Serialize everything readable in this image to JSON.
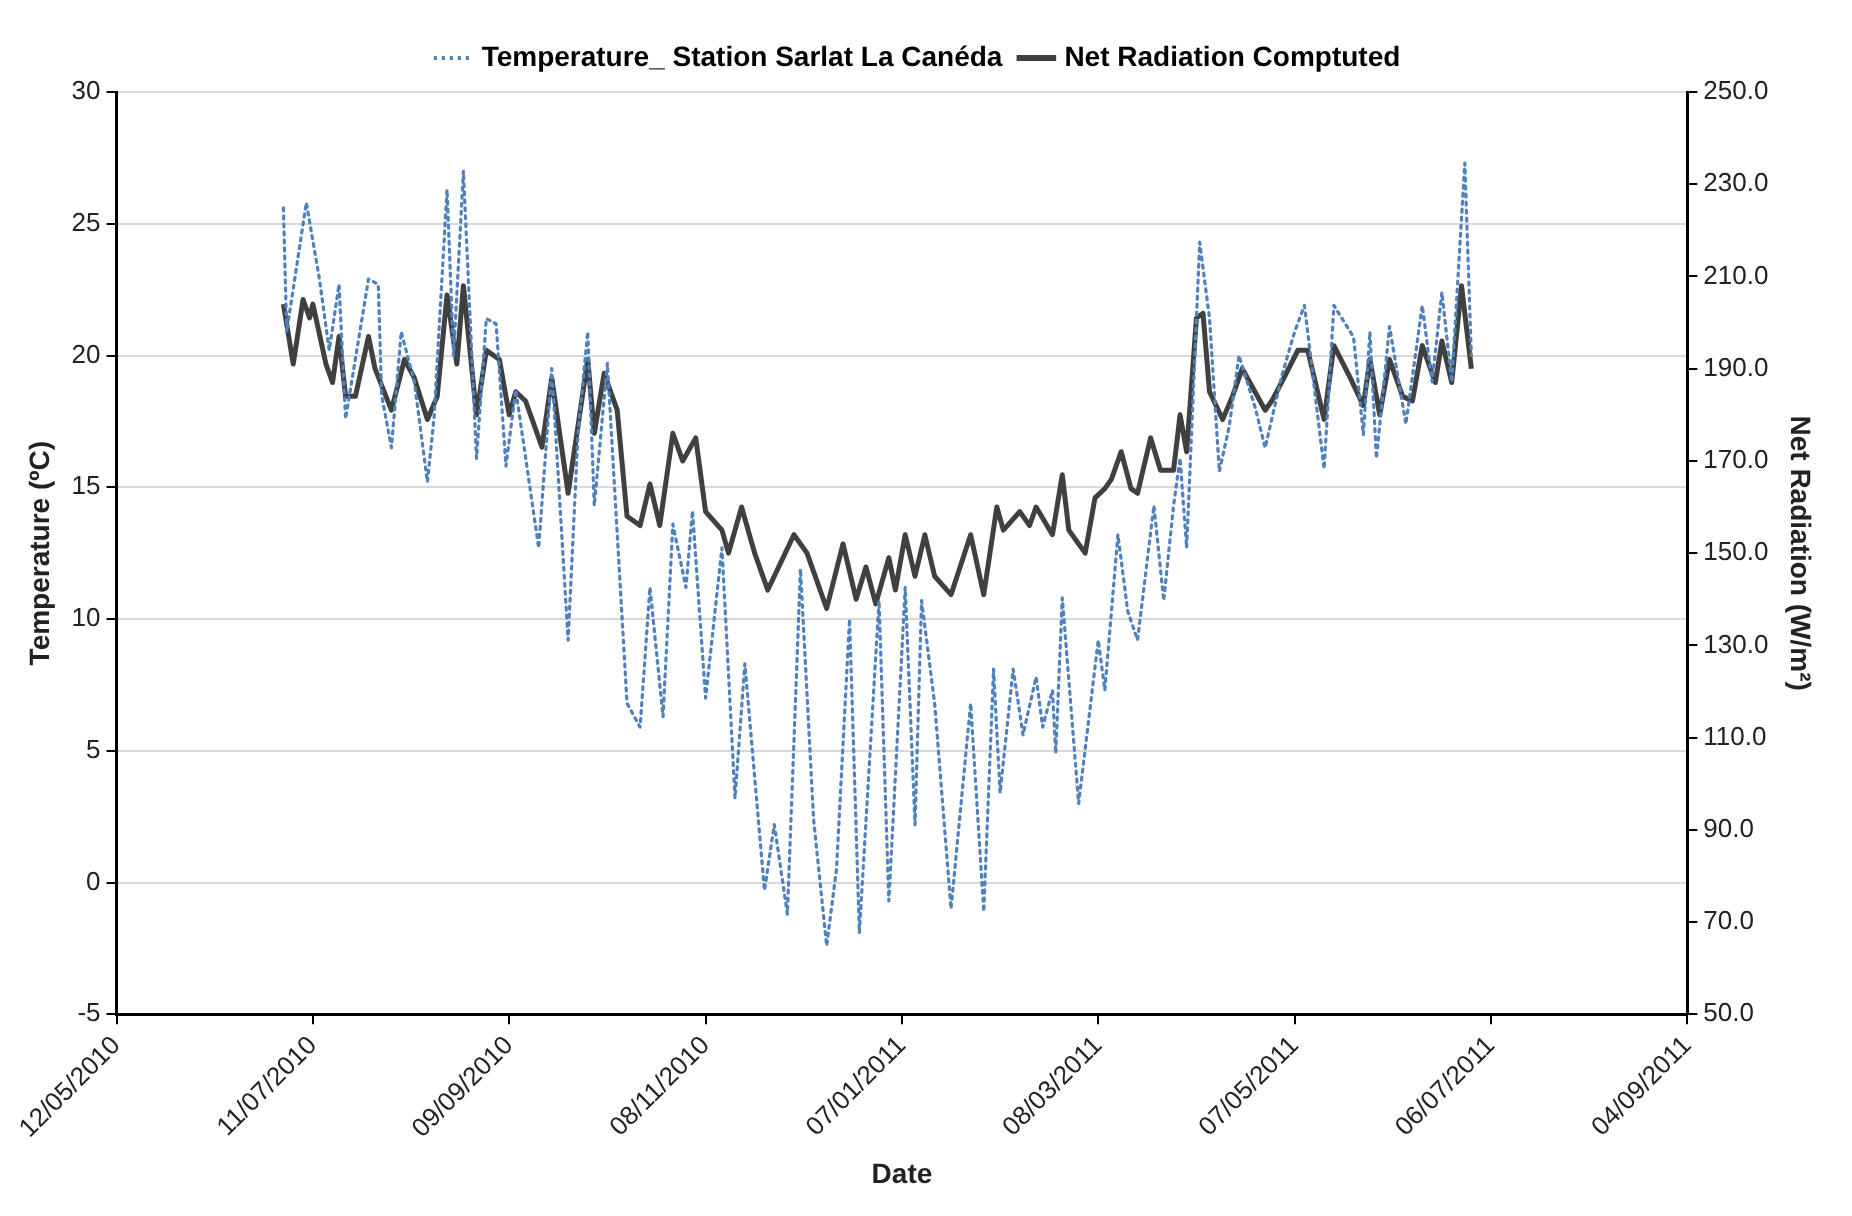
{
  "chart_data": {
    "type": "line",
    "xlabel": "Date",
    "ylabel": "Temperature (ºC)",
    "y2label": "Net Radiation (W/m²)",
    "xlim": [
      "2010-05-12",
      "2011-09-04"
    ],
    "xticks": [
      {
        "value": "2010-05-12",
        "label": "12/05/2010"
      },
      {
        "value": "2010-07-11",
        "label": "11/07/2010"
      },
      {
        "value": "2010-09-09",
        "label": "09/09/2010"
      },
      {
        "value": "2010-11-08",
        "label": "08/11/2010"
      },
      {
        "value": "2011-01-07",
        "label": "07/01/2011"
      },
      {
        "value": "2011-03-08",
        "label": "08/03/2011"
      },
      {
        "value": "2011-05-07",
        "label": "07/05/2011"
      },
      {
        "value": "2011-07-06",
        "label": "06/07/2011"
      },
      {
        "value": "2011-09-04",
        "label": "04/09/2011"
      }
    ],
    "ylim": [
      -5,
      30
    ],
    "yticks": [
      -5,
      0,
      5,
      10,
      15,
      20,
      25,
      30
    ],
    "y2lim": [
      50,
      250
    ],
    "y2ticks": [
      {
        "value": 50,
        "label": "50.0"
      },
      {
        "value": 70,
        "label": "70.0"
      },
      {
        "value": 90,
        "label": "90.0"
      },
      {
        "value": 110,
        "label": "110.0"
      },
      {
        "value": 130,
        "label": "130.0"
      },
      {
        "value": 150,
        "label": "150.0"
      },
      {
        "value": 170,
        "label": "170.0"
      },
      {
        "value": 190,
        "label": "190.0"
      },
      {
        "value": 210,
        "label": "210.0"
      },
      {
        "value": 230,
        "label": "230.0"
      },
      {
        "value": 250,
        "label": "250.0"
      }
    ],
    "grid": "y",
    "legend": "top",
    "marker": "none",
    "series": [
      {
        "name": "Temperature_ Station Sarlat La Canéda",
        "color": "#4f81bd",
        "line_style": "dotted",
        "x": [
          "2010-07-02",
          "2010-07-03",
          "2010-07-09",
          "2010-07-13",
          "2010-07-16",
          "2010-07-19",
          "2010-07-21",
          "2010-07-28",
          "2010-07-31",
          "2010-08-01",
          "2010-08-04",
          "2010-08-07",
          "2010-08-11",
          "2010-08-15",
          "2010-08-17",
          "2010-08-21",
          "2010-08-23",
          "2010-08-26",
          "2010-08-30",
          "2010-09-02",
          "2010-09-05",
          "2010-09-08",
          "2010-09-11",
          "2010-09-18",
          "2010-09-22",
          "2010-09-27",
          "2010-09-30",
          "2010-10-03",
          "2010-10-05",
          "2010-10-09",
          "2010-10-15",
          "2010-10-19",
          "2010-10-22",
          "2010-10-26",
          "2010-10-29",
          "2010-11-02",
          "2010-11-04",
          "2010-11-08",
          "2010-11-13",
          "2010-11-17",
          "2010-11-20",
          "2010-11-26",
          "2010-11-29",
          "2010-12-03",
          "2010-12-07",
          "2010-12-11",
          "2010-12-15",
          "2010-12-18",
          "2010-12-22",
          "2010-12-25",
          "2010-12-31",
          "2011-01-03",
          "2011-01-08",
          "2011-01-11",
          "2011-01-13",
          "2011-01-17",
          "2011-01-22",
          "2011-01-28",
          "2011-02-01",
          "2011-02-04",
          "2011-02-06",
          "2011-02-10",
          "2011-02-13",
          "2011-02-17",
          "2011-02-19",
          "2011-02-22",
          "2011-02-23",
          "2011-02-25",
          "2011-03-02",
          "2011-03-08",
          "2011-03-10",
          "2011-03-14",
          "2011-03-17",
          "2011-03-20",
          "2011-03-25",
          "2011-03-28",
          "2011-03-31",
          "2011-04-02",
          "2011-04-04",
          "2011-04-08",
          "2011-04-11",
          "2011-04-14",
          "2011-04-17",
          "2011-04-20",
          "2011-04-25",
          "2011-04-28",
          "2011-05-03",
          "2011-05-07",
          "2011-05-10",
          "2011-05-16",
          "2011-05-19",
          "2011-05-25",
          "2011-05-28",
          "2011-05-30",
          "2011-06-01",
          "2011-06-05",
          "2011-06-10",
          "2011-06-15",
          "2011-06-18",
          "2011-06-21",
          "2011-06-24",
          "2011-06-28",
          "2011-06-30"
        ],
        "values": [
          25.6,
          20.9,
          25.8,
          22.9,
          20.2,
          22.7,
          17.6,
          22.9,
          22.7,
          18.5,
          16.5,
          20.9,
          19.0,
          15.2,
          17.6,
          26.3,
          20.0,
          27.0,
          16.1,
          21.4,
          21.2,
          15.8,
          18.7,
          12.7,
          19.5,
          9.2,
          17.0,
          20.9,
          14.3,
          19.7,
          6.8,
          5.9,
          11.2,
          6.3,
          13.6,
          11.2,
          14.1,
          7.0,
          12.7,
          3.2,
          8.3,
          -0.3,
          2.2,
          -1.2,
          11.9,
          2.4,
          -2.4,
          0.5,
          10.0,
          -1.9,
          10.7,
          -0.7,
          11.2,
          2.2,
          10.7,
          6.8,
          -1.0,
          6.8,
          -1.1,
          8.1,
          3.4,
          8.1,
          5.6,
          7.8,
          5.9,
          7.3,
          4.9,
          10.8,
          3.0,
          9.2,
          7.3,
          13.2,
          10.3,
          9.2,
          14.3,
          10.7,
          14.3,
          16.1,
          12.7,
          24.3,
          21.4,
          15.6,
          17.3,
          20.0,
          18.0,
          16.5,
          19.2,
          20.9,
          21.9,
          15.7,
          21.9,
          20.7,
          17.0,
          20.9,
          16.1,
          21.1,
          17.4,
          21.9,
          19.0,
          22.4,
          19.0,
          27.3,
          20.0
        ]
      },
      {
        "name": "Net Radiation Comptuted",
        "color": "#404040",
        "line_style": "solid",
        "axis": "y2",
        "x": [
          "2010-07-02",
          "2010-07-05",
          "2010-07-08",
          "2010-07-10",
          "2010-07-11",
          "2010-07-15",
          "2010-07-17",
          "2010-07-19",
          "2010-07-21",
          "2010-07-24",
          "2010-07-28",
          "2010-07-30",
          "2010-08-04",
          "2010-08-08",
          "2010-08-11",
          "2010-08-15",
          "2010-08-18",
          "2010-08-21",
          "2010-08-24",
          "2010-08-26",
          "2010-08-30",
          "2010-09-02",
          "2010-09-06",
          "2010-09-09",
          "2010-09-11",
          "2010-09-14",
          "2010-09-19",
          "2010-09-22",
          "2010-09-27",
          "2010-10-03",
          "2010-10-05",
          "2010-10-08",
          "2010-10-12",
          "2010-10-15",
          "2010-10-19",
          "2010-10-22",
          "2010-10-25",
          "2010-10-29",
          "2010-11-01",
          "2010-11-05",
          "2010-11-08",
          "2010-11-13",
          "2010-11-15",
          "2010-11-19",
          "2010-11-23",
          "2010-11-27",
          "2010-12-01",
          "2010-12-05",
          "2010-12-09",
          "2010-12-15",
          "2010-12-20",
          "2010-12-24",
          "2010-12-27",
          "2010-12-30",
          "2011-01-03",
          "2011-01-05",
          "2011-01-08",
          "2011-01-11",
          "2011-01-14",
          "2011-01-17",
          "2011-01-22",
          "2011-01-28",
          "2011-02-01",
          "2011-02-05",
          "2011-02-07",
          "2011-02-12",
          "2011-02-15",
          "2011-02-17",
          "2011-02-22",
          "2011-02-25",
          "2011-02-27",
          "2011-03-04",
          "2011-03-07",
          "2011-03-10",
          "2011-03-12",
          "2011-03-15",
          "2011-03-18",
          "2011-03-20",
          "2011-03-24",
          "2011-03-27",
          "2011-03-31",
          "2011-04-02",
          "2011-04-04",
          "2011-04-07",
          "2011-04-09",
          "2011-04-11",
          "2011-04-15",
          "2011-04-18",
          "2011-04-21",
          "2011-04-28",
          "2011-04-30",
          "2011-05-03",
          "2011-05-08",
          "2011-05-11",
          "2011-05-16",
          "2011-05-19",
          "2011-05-24",
          "2011-05-28",
          "2011-05-30",
          "2011-06-02",
          "2011-06-05",
          "2011-06-09",
          "2011-06-12",
          "2011-06-15",
          "2011-06-19",
          "2011-06-21",
          "2011-06-24",
          "2011-06-27",
          "2011-06-30"
        ],
        "values": [
          204,
          191,
          205,
          201,
          204,
          191,
          187,
          197,
          184,
          184,
          197,
          190,
          181,
          192,
          188,
          179,
          184,
          206,
          191,
          208,
          180,
          194,
          192,
          180,
          185,
          183,
          173,
          188,
          163,
          192,
          176,
          189,
          181,
          158,
          156,
          165,
          156,
          176,
          170,
          175,
          159,
          155,
          150,
          160,
          150,
          142,
          148,
          154,
          150,
          138,
          152,
          140,
          147,
          139,
          149,
          142,
          154,
          145,
          154,
          145,
          141,
          154,
          141,
          160,
          155,
          159,
          156,
          160,
          154,
          167,
          155,
          150,
          162,
          164,
          166,
          172,
          164,
          163,
          175,
          168,
          168,
          180,
          172,
          201,
          202,
          185,
          179,
          184,
          190,
          181,
          183,
          187,
          194,
          194,
          179,
          195,
          188,
          182,
          192,
          180,
          192,
          184,
          183,
          195,
          187,
          196,
          187,
          208,
          190
        ]
      }
    ]
  }
}
